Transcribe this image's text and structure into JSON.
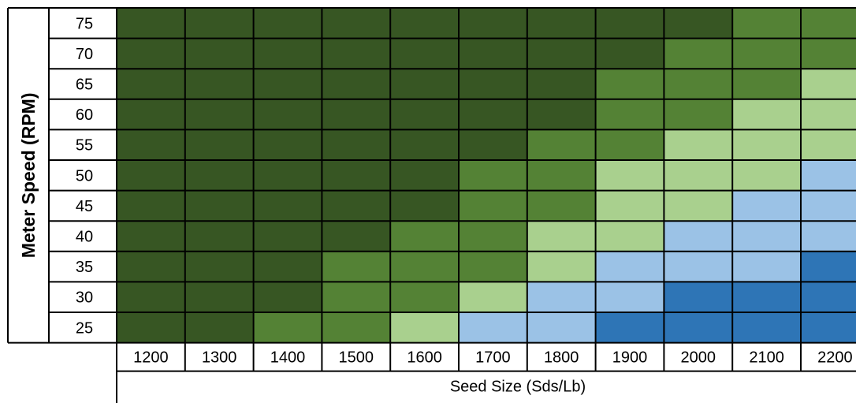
{
  "chart_data": {
    "type": "heatmap",
    "xlabel": "Seed Size (Sds/Lb)",
    "ylabel": "Meter Speed (RPM)",
    "x": [
      "1200",
      "1300",
      "1400",
      "1500",
      "1600",
      "1700",
      "1800",
      "1900",
      "2000",
      "2100",
      "2200"
    ],
    "y": [
      "75",
      "70",
      "65",
      "60",
      "55",
      "50",
      "45",
      "40",
      "35",
      "30",
      "25"
    ],
    "palette": [
      "#375623",
      "#548235",
      "#a9d08e",
      "#9bc2e6",
      "#2e75b6"
    ],
    "levels": [
      [
        0,
        0,
        0,
        0,
        0,
        0,
        0,
        0,
        0,
        1,
        1
      ],
      [
        0,
        0,
        0,
        0,
        0,
        0,
        0,
        0,
        1,
        1,
        1
      ],
      [
        0,
        0,
        0,
        0,
        0,
        0,
        0,
        1,
        1,
        1,
        2
      ],
      [
        0,
        0,
        0,
        0,
        0,
        0,
        0,
        1,
        1,
        2,
        2
      ],
      [
        0,
        0,
        0,
        0,
        0,
        0,
        1,
        1,
        2,
        2,
        2
      ],
      [
        0,
        0,
        0,
        0,
        0,
        1,
        1,
        2,
        2,
        2,
        3
      ],
      [
        0,
        0,
        0,
        0,
        0,
        1,
        1,
        2,
        2,
        3,
        3
      ],
      [
        0,
        0,
        0,
        0,
        1,
        1,
        2,
        2,
        3,
        3,
        3
      ],
      [
        0,
        0,
        0,
        1,
        1,
        1,
        2,
        3,
        3,
        3,
        4
      ],
      [
        0,
        0,
        0,
        1,
        1,
        2,
        3,
        3,
        4,
        4,
        4
      ],
      [
        0,
        0,
        1,
        1,
        2,
        3,
        3,
        4,
        4,
        4,
        4
      ]
    ]
  }
}
